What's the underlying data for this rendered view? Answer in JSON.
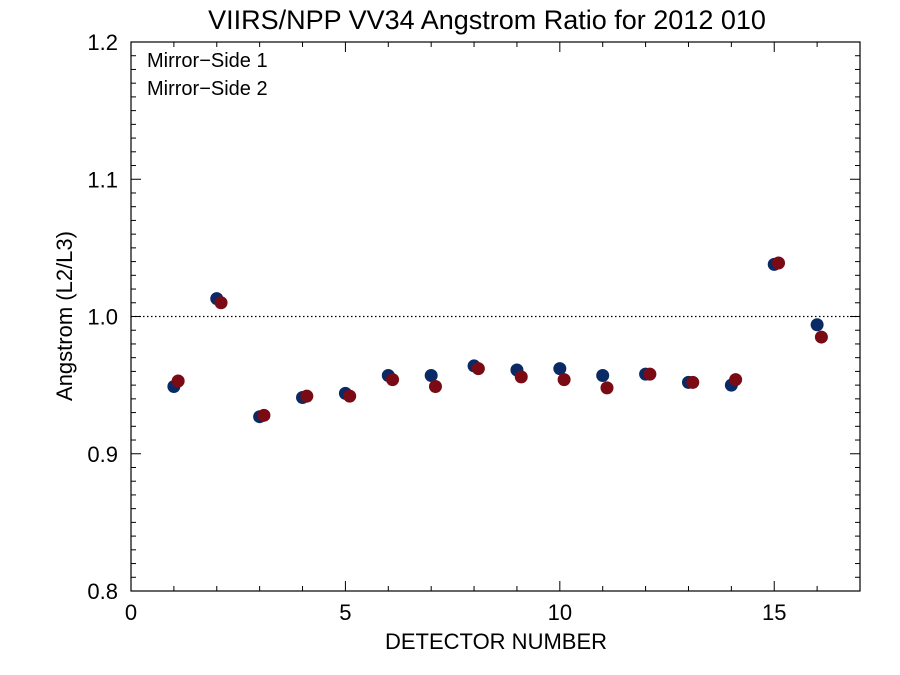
{
  "chart_data": {
    "type": "scatter",
    "title": "VIIRS/NPP VV34 Angstrom Ratio for 2012 010",
    "xlabel": "DETECTOR NUMBER",
    "ylabel": "Angstrom (L2/L3)",
    "xlim": [
      0,
      17
    ],
    "ylim": [
      0.8,
      1.2
    ],
    "x_ticks": [
      0,
      5,
      10,
      15
    ],
    "x_tick_labels": [
      "0",
      "5",
      "10",
      "15"
    ],
    "y_ticks": [
      0.8,
      0.9,
      1.0,
      1.1,
      1.2
    ],
    "y_tick_labels": [
      "0.8",
      "0.9",
      "1.0",
      "1.1",
      "1.2"
    ],
    "reference_line": 1.0,
    "legend_position": "top-left",
    "series": [
      {
        "name": "Mirror−Side 1",
        "color": "#0a2a66",
        "x": [
          1,
          2,
          3,
          4,
          5,
          6,
          7,
          8,
          9,
          10,
          11,
          12,
          13,
          14,
          15,
          16
        ],
        "y": [
          0.949,
          1.013,
          0.927,
          0.941,
          0.944,
          0.957,
          0.957,
          0.964,
          0.961,
          0.962,
          0.957,
          0.958,
          0.952,
          0.95,
          1.038,
          0.994
        ]
      },
      {
        "name": "Mirror−Side 2",
        "color": "#7a0a14",
        "x": [
          1.1,
          2.1,
          3.1,
          4.1,
          5.1,
          6.1,
          7.1,
          8.1,
          9.1,
          10.1,
          11.1,
          12.1,
          13.1,
          14.1,
          15.1,
          16.1
        ],
        "y": [
          0.953,
          1.01,
          0.928,
          0.942,
          0.942,
          0.954,
          0.949,
          0.962,
          0.956,
          0.954,
          0.948,
          0.958,
          0.952,
          0.954,
          1.039,
          0.985
        ]
      }
    ]
  }
}
